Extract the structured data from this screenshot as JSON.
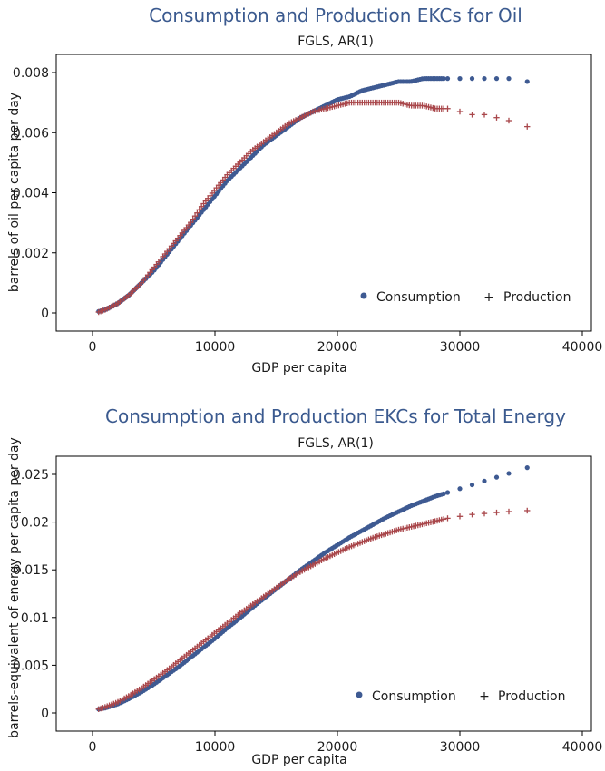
{
  "colors": {
    "consumption": "#3e5a92",
    "production": "#a9474b",
    "title": "#3b5a8f"
  },
  "chart_data": [
    {
      "type": "scatter",
      "title": "Consumption and Production EKCs for Oil",
      "subtitle": "FGLS, AR(1)",
      "xlabel": "GDP per capita",
      "ylabel": "barrels of oil per capita per day",
      "xlim": [
        0,
        40000
      ],
      "ylim": [
        0,
        0.008
      ],
      "x_ticks": [
        0,
        10000,
        20000,
        30000,
        40000
      ],
      "y_ticks": [
        0,
        0.002,
        0.004,
        0.006,
        0.008
      ],
      "x_tick_labels": [
        "0",
        "10000",
        "20000",
        "30000",
        "40000"
      ],
      "y_tick_labels": [
        "0",
        "0.002",
        "0.004",
        "0.006",
        "0.008"
      ],
      "grid": false,
      "legend_position": "bottom-right",
      "series": [
        {
          "name": "Consumption",
          "marker": "circle",
          "color": "#3e5a92",
          "x": [
            500,
            1000,
            2000,
            3000,
            4000,
            5000,
            6000,
            7000,
            8000,
            9000,
            10000,
            11000,
            12000,
            13000,
            14000,
            15000,
            16000,
            17000,
            18000,
            19000,
            20000,
            21000,
            22000,
            23000,
            24000,
            25000,
            26000,
            27000,
            28000,
            29000,
            30000,
            31000,
            32000,
            33000,
            34000,
            35500
          ],
          "y": [
            5e-05,
            0.0001,
            0.0003,
            0.0006,
            0.001,
            0.0014,
            0.0019,
            0.0024,
            0.0029,
            0.0034,
            0.0039,
            0.0044,
            0.0048,
            0.0052,
            0.0056,
            0.0059,
            0.0062,
            0.0065,
            0.0067,
            0.0069,
            0.0071,
            0.0072,
            0.0074,
            0.0075,
            0.0076,
            0.0077,
            0.0077,
            0.0078,
            0.0078,
            0.0078,
            0.0078,
            0.0078,
            0.0078,
            0.0078,
            0.0078,
            0.0077
          ]
        },
        {
          "name": "Production",
          "marker": "plus",
          "color": "#a9474b",
          "x": [
            500,
            1000,
            2000,
            3000,
            4000,
            5000,
            6000,
            7000,
            8000,
            9000,
            10000,
            11000,
            12000,
            13000,
            14000,
            15000,
            16000,
            17000,
            18000,
            19000,
            20000,
            21000,
            22000,
            23000,
            24000,
            25000,
            26000,
            27000,
            28000,
            29000,
            30000,
            31000,
            32000,
            33000,
            34000,
            35500
          ],
          "y": [
            3e-05,
            0.0001,
            0.0003,
            0.0006,
            0.001,
            0.0015,
            0.002,
            0.0025,
            0.003,
            0.0036,
            0.0041,
            0.0046,
            0.005,
            0.0054,
            0.0057,
            0.006,
            0.0063,
            0.0065,
            0.0067,
            0.0068,
            0.0069,
            0.007,
            0.007,
            0.007,
            0.007,
            0.007,
            0.0069,
            0.0069,
            0.0068,
            0.0068,
            0.0067,
            0.0066,
            0.0066,
            0.0065,
            0.0064,
            0.0062
          ]
        }
      ]
    },
    {
      "type": "scatter",
      "title": "Consumption and Production EKCs for Total Energy",
      "subtitle": "FGLS, AR(1)",
      "xlabel": "GDP per capita",
      "ylabel": "barrels-equivalent of energy per capita per day",
      "xlim": [
        0,
        40000
      ],
      "ylim": [
        0,
        0.025
      ],
      "x_ticks": [
        0,
        10000,
        20000,
        30000,
        40000
      ],
      "y_ticks": [
        0,
        0.005,
        0.01,
        0.015,
        0.02,
        0.025
      ],
      "x_tick_labels": [
        "0",
        "10000",
        "20000",
        "30000",
        "40000"
      ],
      "y_tick_labels": [
        "0",
        "0.005",
        "0.01",
        "0.015",
        "0.02",
        "0.025"
      ],
      "grid": false,
      "legend_position": "bottom-right",
      "series": [
        {
          "name": "Consumption",
          "marker": "circle",
          "color": "#3e5a92",
          "x": [
            500,
            1000,
            2000,
            3000,
            4000,
            5000,
            6000,
            7000,
            8000,
            9000,
            10000,
            11000,
            12000,
            13000,
            14000,
            15000,
            16000,
            17000,
            18000,
            19000,
            20000,
            21000,
            22000,
            23000,
            24000,
            25000,
            26000,
            27000,
            28000,
            29000,
            30000,
            31000,
            32000,
            33000,
            34000,
            35500
          ],
          "y": [
            0.0004,
            0.0005,
            0.0009,
            0.0015,
            0.0022,
            0.003,
            0.0039,
            0.0048,
            0.0058,
            0.0068,
            0.0078,
            0.0089,
            0.0099,
            0.011,
            0.012,
            0.013,
            0.014,
            0.015,
            0.0159,
            0.0168,
            0.0176,
            0.0184,
            0.0191,
            0.0198,
            0.0205,
            0.0211,
            0.0217,
            0.0222,
            0.0227,
            0.0231,
            0.0235,
            0.0239,
            0.0243,
            0.0247,
            0.0251,
            0.0257
          ]
        },
        {
          "name": "Production",
          "marker": "plus",
          "color": "#a9474b",
          "x": [
            500,
            1000,
            2000,
            3000,
            4000,
            5000,
            6000,
            7000,
            8000,
            9000,
            10000,
            11000,
            12000,
            13000,
            14000,
            15000,
            16000,
            17000,
            18000,
            19000,
            20000,
            21000,
            22000,
            23000,
            24000,
            25000,
            26000,
            27000,
            28000,
            29000,
            30000,
            31000,
            32000,
            33000,
            34000,
            35500
          ],
          "y": [
            0.0004,
            0.0006,
            0.0011,
            0.0018,
            0.0026,
            0.0035,
            0.0044,
            0.0054,
            0.0064,
            0.0074,
            0.0084,
            0.0094,
            0.0104,
            0.0113,
            0.0122,
            0.0131,
            0.014,
            0.0148,
            0.0155,
            0.0162,
            0.0168,
            0.0174,
            0.0179,
            0.0184,
            0.0188,
            0.0192,
            0.0195,
            0.0198,
            0.0201,
            0.0204,
            0.0206,
            0.0208,
            0.0209,
            0.021,
            0.0211,
            0.0212
          ]
        }
      ]
    }
  ]
}
